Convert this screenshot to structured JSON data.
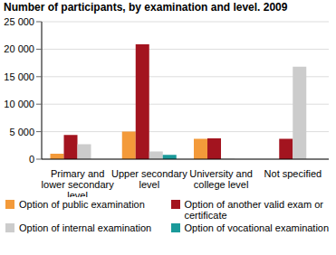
{
  "chart_data": {
    "type": "bar",
    "title": "Number of participants, by examination and level. 2009",
    "categories": [
      "Primary and lower secondary level",
      "Upper secondary level",
      "University and college level",
      "Not specified"
    ],
    "series": [
      {
        "name": "Option of public examination",
        "color": "#f39a3a",
        "values": [
          1000,
          5000,
          3700,
          null
        ]
      },
      {
        "name": "Option of another valid exam or certificate",
        "color": "#a3141f",
        "values": [
          4400,
          20900,
          3800,
          3700
        ]
      },
      {
        "name": "Option of internal examination",
        "color": "#cccccc",
        "values": [
          2700,
          1400,
          100,
          16800
        ]
      },
      {
        "name": "Option of vocational examination",
        "color": "#1a9a9a",
        "values": [
          null,
          800,
          null,
          null
        ]
      }
    ],
    "ylim": [
      0,
      25000
    ],
    "yticks": [
      0,
      {
        "value": 5000,
        "label": "5 000"
      },
      {
        "value": 10000,
        "label": "10 000"
      },
      {
        "value": 15000,
        "label": "15 000"
      },
      {
        "value": 20000,
        "label": "20 000"
      },
      {
        "value": 25000,
        "label": "25 000"
      }
    ],
    "grid": true,
    "legend": "bottom"
  }
}
